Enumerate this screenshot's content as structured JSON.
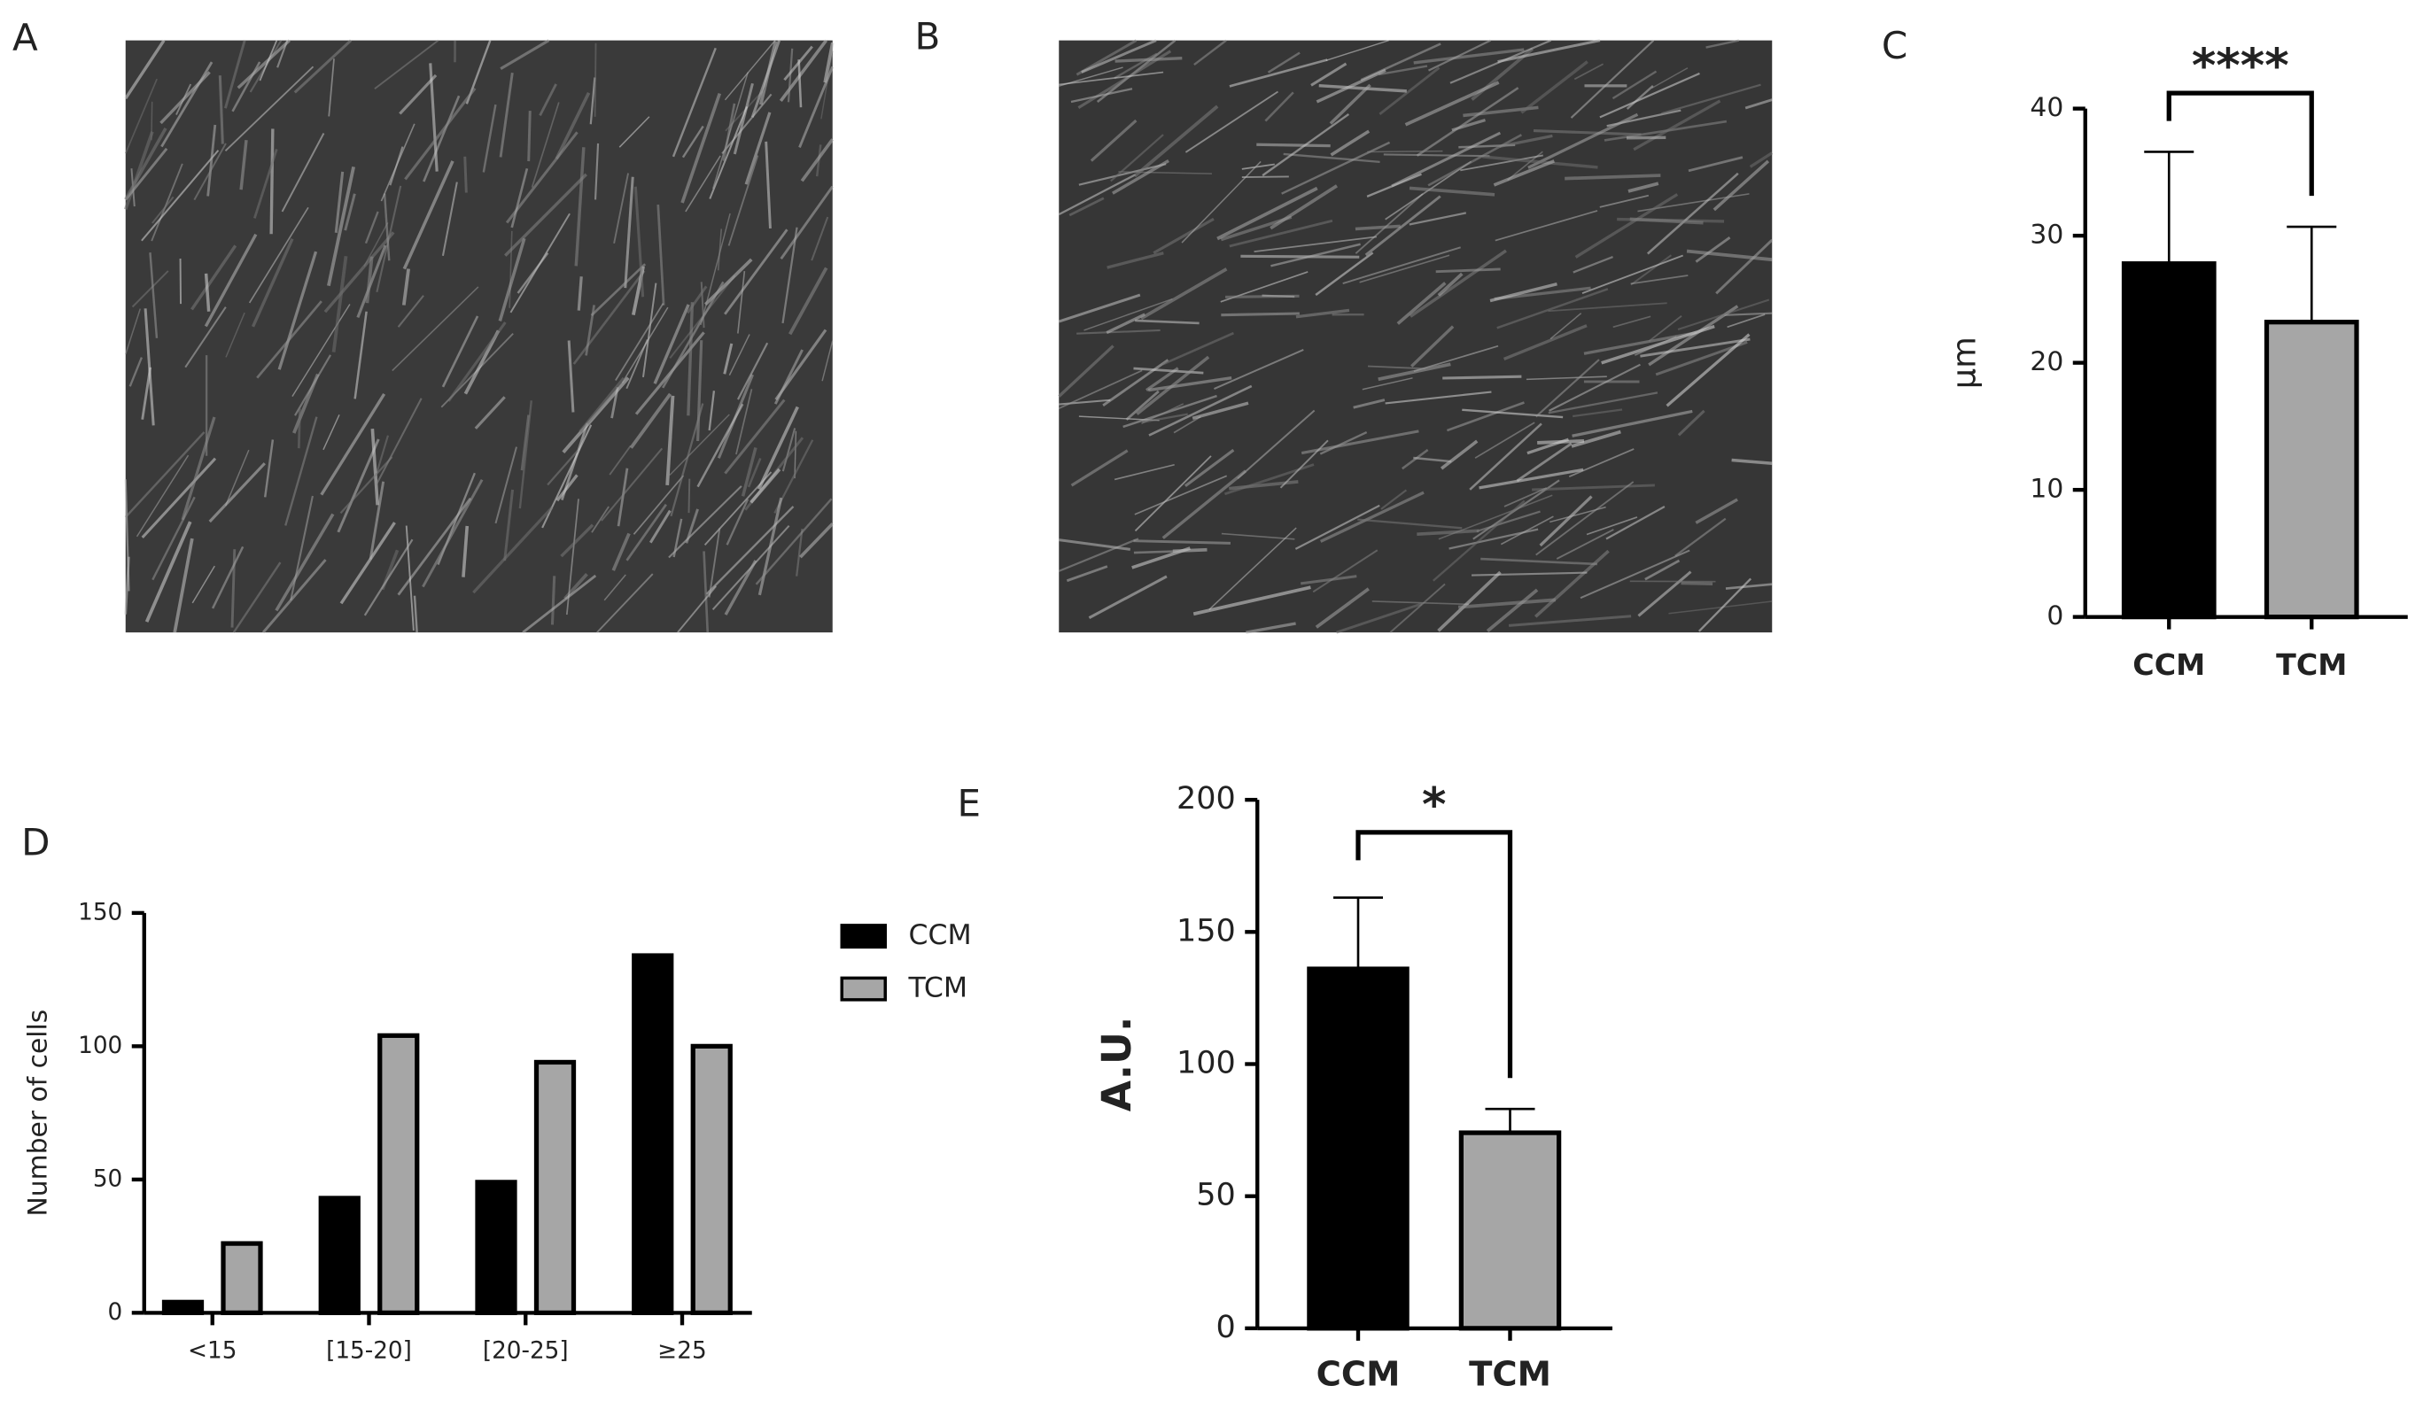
{
  "panel_labels": [
    "A",
    "B"
  ],
  "chart_data": [
    {
      "type": "bar",
      "panel": "C",
      "ylabel": "µm",
      "significance": "****",
      "categories": [
        "CCM",
        "TCM"
      ],
      "values": [
        27.8,
        23.2
      ],
      "errors": [
        8.8,
        7.5
      ],
      "colors": [
        "#000000",
        "#a6a6a6"
      ],
      "ylim": [
        0,
        40
      ],
      "yticks": [
        0,
        10,
        20,
        30,
        40
      ]
    },
    {
      "type": "grouped-bar",
      "panel": "D",
      "ylabel": "Number of cells",
      "categories": [
        "<15",
        "[15-20]",
        "[20-25]",
        "≥25"
      ],
      "series": [
        {
          "name": "CCM",
          "color": "#000000",
          "values": [
            4,
            43,
            49,
            134
          ]
        },
        {
          "name": "TCM",
          "color": "#a6a6a6",
          "values": [
            26,
            104,
            94,
            100
          ]
        }
      ],
      "ylim": [
        0,
        150
      ],
      "yticks": [
        0,
        50,
        100,
        150
      ]
    },
    {
      "type": "bar",
      "panel": "E",
      "ylabel": "A.U.",
      "significance": "*",
      "categories": [
        "CCM",
        "TCM"
      ],
      "values": [
        136,
        74
      ],
      "errors": [
        27,
        9
      ],
      "colors": [
        "#000000",
        "#a6a6a6"
      ],
      "ylim": [
        0,
        200
      ],
      "yticks": [
        0,
        50,
        100,
        150,
        200
      ]
    }
  ]
}
